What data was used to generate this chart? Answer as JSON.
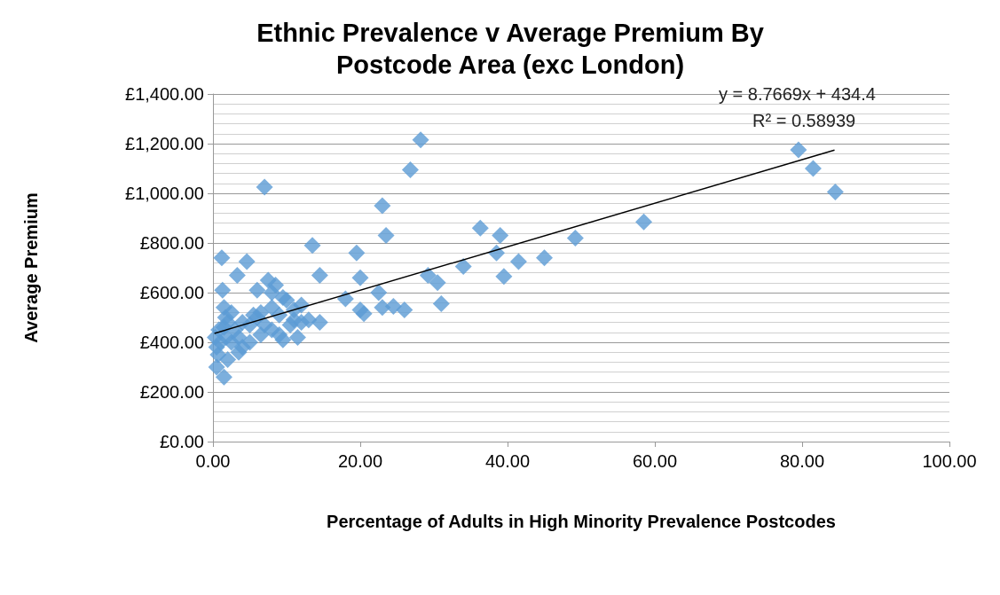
{
  "chart_data": {
    "type": "scatter",
    "title": "Ethnic Prevalence v Average Premium By\nPostcode Area (exc London)",
    "xlabel": "Percentage of Adults in High Minority Prevalence Postcodes",
    "ylabel": "Average Premium",
    "annotations": [
      "y = 8.7669x + 434.4",
      "R² = 0.58939"
    ],
    "marker": "diamond",
    "grid": "y",
    "xlim": [
      0,
      100
    ],
    "xticks": [
      {
        "value": 0,
        "label": "0.00"
      },
      {
        "value": 20,
        "label": "20.00"
      },
      {
        "value": 40,
        "label": "40.00"
      },
      {
        "value": 60,
        "label": "60.00"
      },
      {
        "value": 80,
        "label": "80.00"
      },
      {
        "value": 100,
        "label": "100.00"
      }
    ],
    "ylim": [
      0,
      1400
    ],
    "yticks": [
      {
        "value": 0,
        "label": "£0.00"
      },
      {
        "value": 200,
        "label": "£200.00"
      },
      {
        "value": 400,
        "label": "£400.00"
      },
      {
        "value": 600,
        "label": "£600.00"
      },
      {
        "value": 800,
        "label": "£800.00"
      },
      {
        "value": 1000,
        "label": "£1,000.00"
      },
      {
        "value": 1200,
        "label": "£1,200.00"
      },
      {
        "value": 1400,
        "label": "£1,400.00"
      }
    ],
    "series": [
      {
        "color": "#5b9bd5",
        "x": [
          1.2,
          1.3,
          1.5,
          1.7,
          1.5,
          0.3,
          0.5,
          0.7,
          0.5,
          1.5,
          2.0,
          2.5,
          3.0,
          3.3,
          4.6,
          3.5,
          4.0,
          5.0,
          5.5,
          6.0,
          6.5,
          7.0,
          7.5,
          8.0,
          8.5,
          9.0,
          9.5,
          10.0,
          11.0,
          11.5,
          12.0,
          13.0,
          13.5,
          14.5,
          14.5,
          18.0,
          19.5,
          20.0,
          20.0,
          20.5,
          22.5,
          23.0,
          23.5,
          23.0,
          24.5,
          26.0,
          26.8,
          28.2,
          29.2,
          30.5,
          31.0,
          34.0,
          36.3,
          38.5,
          39.0,
          39.5,
          41.5,
          45.0,
          49.2,
          58.5,
          79.5,
          81.5,
          84.5,
          2.0,
          1.0,
          3.5,
          4.0,
          6.0,
          7.0,
          8.0,
          9.0,
          10.5,
          12.0,
          2.5,
          1.8,
          0.8,
          5.0,
          6.5,
          8.0,
          9.5,
          11.0
        ],
        "values": [
          740,
          610,
          540,
          500,
          460,
          420,
          380,
          350,
          300,
          260,
          330,
          400,
          450,
          670,
          725,
          360,
          480,
          400,
          510,
          610,
          430,
          1025,
          650,
          600,
          630,
          510,
          410,
          570,
          530,
          420,
          550,
          490,
          790,
          670,
          480,
          575,
          760,
          660,
          530,
          515,
          600,
          950,
          830,
          540,
          545,
          530,
          1095,
          1215,
          670,
          640,
          555,
          705,
          860,
          760,
          830,
          665,
          725,
          740,
          820,
          885,
          1175,
          1100,
          1005,
          480,
          400,
          420,
          380,
          500,
          470,
          450,
          430,
          470,
          480,
          520,
          420,
          450,
          470,
          520,
          540,
          580,
          490
        ]
      },
      {
        "type": "line",
        "color": "#000000",
        "marker": "none",
        "x": [
          0.2,
          84.4
        ],
        "values": [
          436,
          1174
        ]
      }
    ]
  }
}
